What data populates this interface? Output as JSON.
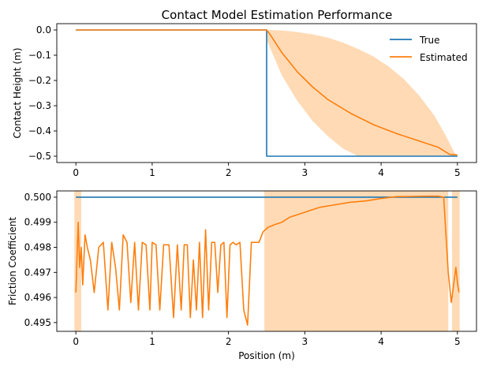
{
  "figure": {
    "title": "Contact Model Estimation Performance"
  },
  "chart_data": [
    {
      "type": "line",
      "title": "Contact Model Estimation Performance",
      "xlabel": "",
      "ylabel": "Contact Height (m)",
      "xlim": [
        -0.25,
        5.25
      ],
      "ylim": [
        -0.525,
        0.025
      ],
      "xticks": [
        "0",
        "1",
        "2",
        "3",
        "4",
        "5"
      ],
      "xtick_values": [
        0,
        1,
        2,
        3,
        4,
        5
      ],
      "yticks": [
        "0.0",
        "−0.1",
        "−0.2",
        "−0.3",
        "−0.4",
        "−0.5"
      ],
      "ytick_values": [
        0.0,
        -0.1,
        -0.2,
        -0.3,
        -0.4,
        -0.5
      ],
      "legend": {
        "placement": "top-right",
        "entries": [
          "True",
          "Estimated"
        ]
      },
      "grid": false,
      "series": [
        {
          "name": "True",
          "color": "#1f77b4",
          "x": [
            0,
            2.5,
            2.5,
            5.0
          ],
          "y": [
            0,
            0,
            -0.5,
            -0.5
          ]
        },
        {
          "name": "Estimated",
          "color": "#ff7f0e",
          "x": [
            0,
            2.5,
            2.55,
            2.7,
            2.9,
            3.1,
            3.3,
            3.6,
            3.9,
            4.2,
            4.5,
            4.75,
            4.9,
            5.0
          ],
          "y": [
            0,
            0,
            -0.02,
            -0.09,
            -0.165,
            -0.225,
            -0.275,
            -0.33,
            -0.375,
            -0.41,
            -0.44,
            -0.465,
            -0.493,
            -0.495
          ]
        }
      ],
      "band": {
        "color": "#ffbb78",
        "x": [
          2.5,
          2.7,
          2.9,
          3.1,
          3.3,
          3.5,
          3.7,
          3.9,
          4.1,
          4.3,
          4.5,
          4.7,
          4.85,
          4.95,
          5.0
        ],
        "upper": [
          0.0,
          -0.002,
          -0.008,
          -0.017,
          -0.03,
          -0.05,
          -0.075,
          -0.105,
          -0.145,
          -0.195,
          -0.26,
          -0.34,
          -0.42,
          -0.48,
          -0.5
        ],
        "lower": [
          -0.04,
          -0.18,
          -0.28,
          -0.36,
          -0.42,
          -0.47,
          -0.5,
          -0.5,
          -0.5,
          -0.5,
          -0.5,
          -0.5,
          -0.5,
          -0.5,
          -0.5
        ]
      }
    },
    {
      "type": "line",
      "title": "",
      "xlabel": "Position (m)",
      "ylabel": "Friction Coefficient",
      "xlim": [
        -0.25,
        5.25
      ],
      "ylim": [
        0.49465,
        0.50025
      ],
      "xticks": [
        "0",
        "1",
        "2",
        "3",
        "4",
        "5"
      ],
      "xtick_values": [
        0,
        1,
        2,
        3,
        4,
        5
      ],
      "yticks": [
        "0.500",
        "0.499",
        "0.498",
        "0.497",
        "0.496",
        "0.495"
      ],
      "ytick_values": [
        0.5,
        0.499,
        0.498,
        0.497,
        0.496,
        0.495
      ],
      "grid": false,
      "series": [
        {
          "name": "True",
          "color": "#1f77b4",
          "x": [
            0,
            5.0
          ],
          "y": [
            0.5,
            0.5
          ]
        },
        {
          "name": "Estimated",
          "color": "#ff7f0e",
          "x": [
            0.0,
            0.03,
            0.05,
            0.07,
            0.09,
            0.12,
            0.15,
            0.19,
            0.24,
            0.3,
            0.36,
            0.42,
            0.47,
            0.52,
            0.57,
            0.62,
            0.67,
            0.72,
            0.77,
            0.82,
            0.87,
            0.92,
            0.97,
            1.0,
            1.05,
            1.1,
            1.15,
            1.22,
            1.28,
            1.33,
            1.38,
            1.42,
            1.46,
            1.5,
            1.54,
            1.58,
            1.62,
            1.66,
            1.7,
            1.74,
            1.78,
            1.82,
            1.86,
            1.9,
            1.94,
            1.98,
            2.02,
            2.06,
            2.1,
            2.15,
            2.2,
            2.25,
            2.3,
            2.35,
            2.4,
            2.45,
            2.48,
            2.52,
            2.6,
            2.7,
            2.8,
            2.9,
            3.0,
            3.2,
            3.4,
            3.6,
            3.8,
            4.0,
            4.2,
            4.4,
            4.6,
            4.75,
            4.82,
            4.85,
            4.88,
            4.92,
            4.95,
            4.98,
            5.0,
            5.02
          ],
          "y": [
            0.4962,
            0.499,
            0.4972,
            0.498,
            0.4965,
            0.4985,
            0.498,
            0.4975,
            0.4962,
            0.498,
            0.4982,
            0.4955,
            0.4982,
            0.4972,
            0.4955,
            0.4985,
            0.4982,
            0.4958,
            0.4982,
            0.4955,
            0.4982,
            0.4981,
            0.4955,
            0.4982,
            0.4981,
            0.4955,
            0.4981,
            0.4981,
            0.4952,
            0.4981,
            0.4955,
            0.4981,
            0.4981,
            0.4952,
            0.4975,
            0.4955,
            0.4982,
            0.4952,
            0.4987,
            0.4955,
            0.4982,
            0.4982,
            0.4962,
            0.4981,
            0.4982,
            0.4952,
            0.4981,
            0.4982,
            0.4981,
            0.4982,
            0.4955,
            0.4949,
            0.4982,
            0.4982,
            0.4982,
            0.4986,
            0.4987,
            0.4988,
            0.4989,
            0.499,
            0.4992,
            0.4993,
            0.4994,
            0.4996,
            0.4997,
            0.4998,
            0.49985,
            0.49995,
            0.50002,
            0.50003,
            0.50004,
            0.50004,
            0.5,
            0.4985,
            0.497,
            0.4958,
            0.4965,
            0.4972,
            0.4966,
            0.4962
          ]
        }
      ],
      "bands": [
        {
          "color": "#ffbb78",
          "x0": -0.02,
          "x1": 0.07
        },
        {
          "color": "#ffbb78",
          "x0": 2.47,
          "x1": 4.88
        },
        {
          "color": "#ffbb78",
          "x0": 4.93,
          "x1": 5.03
        }
      ]
    }
  ]
}
